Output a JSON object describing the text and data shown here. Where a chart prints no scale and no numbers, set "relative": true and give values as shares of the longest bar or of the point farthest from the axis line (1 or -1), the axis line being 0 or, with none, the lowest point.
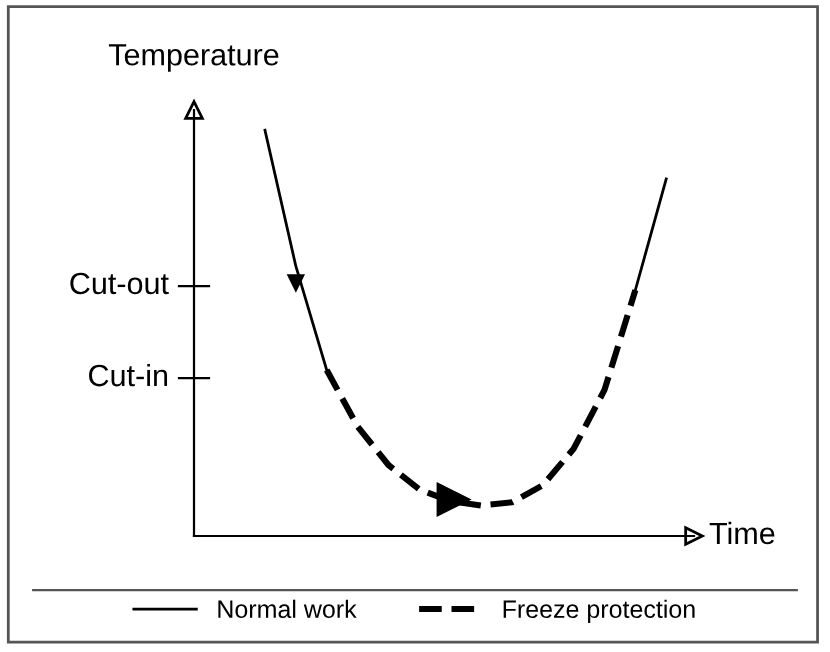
{
  "chart_data": {
    "type": "line",
    "relative": true,
    "ylabel": "Temperature",
    "xlabel": "Time",
    "categories": [
      null,
      null,
      null,
      null,
      null,
      null,
      null,
      null,
      null,
      null,
      null,
      null,
      null,
      null
    ],
    "ref_lines": [
      {
        "axis": "y",
        "value": 0.616,
        "label": "Cut-out"
      },
      {
        "axis": "y",
        "value": 0.389,
        "label": "Cut-in"
      }
    ],
    "legend": "bottom",
    "marker": "none",
    "series": [
      {
        "name": "Normal work",
        "color": "#000000",
        "line_style": "solid",
        "values": [
          1,
          0.665,
          0.409,
          null,
          null,
          null,
          null,
          null,
          null,
          null,
          null,
          null,
          null,
          null
        ]
      },
      {
        "name": "Freeze protection",
        "color": "#000000",
        "line_style": "dashed",
        "values": [
          null,
          null,
          0.409,
          0.27,
          0.175,
          0.115,
          0.086,
          0.075,
          0.083,
          0.125,
          0.215,
          0.36,
          0.606,
          null
        ]
      },
      {
        "color": "#000000",
        "line_style": "solid",
        "values": [
          null,
          null,
          null,
          null,
          null,
          null,
          null,
          null,
          null,
          null,
          null,
          null,
          0.606,
          0.88
        ]
      }
    ]
  }
}
